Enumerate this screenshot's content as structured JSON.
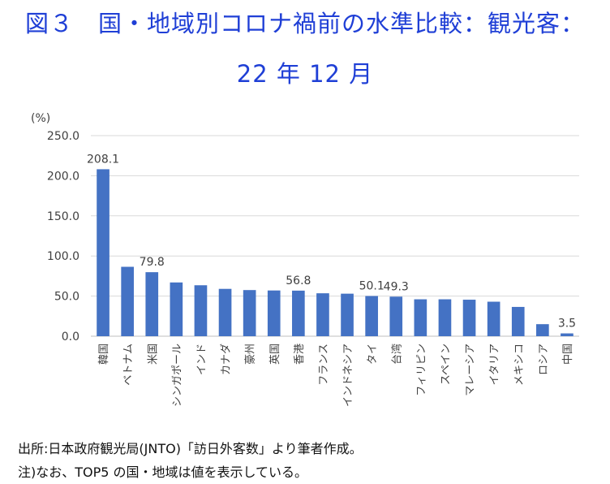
{
  "title": {
    "line1": "図３　国・地域別コロナ禍前の水準比較：観光客：",
    "line2": "22 年 12 月"
  },
  "notes": {
    "source": "出所:日本政府観光局(JNTO)「訪日外客数」より筆者作成。",
    "note": "注)なお、TOP5 の国・地域は値を表示している。"
  },
  "chart_data": {
    "type": "bar",
    "unit_label": "(%)",
    "categories": [
      "韓国",
      "ベトナム",
      "米国",
      "シンガポール",
      "インド",
      "カナダ",
      "豪州",
      "英国",
      "香港",
      "フランス",
      "インドネシア",
      "タイ",
      "台湾",
      "フィリピン",
      "スペイン",
      "マレーシア",
      "イタリア",
      "メキシコ",
      "ロシア",
      "中国"
    ],
    "values": [
      208.1,
      86.5,
      79.8,
      67.0,
      63.5,
      59.0,
      57.5,
      57.0,
      56.8,
      53.5,
      53.0,
      50.1,
      49.3,
      46.0,
      46.0,
      45.5,
      43.0,
      36.5,
      15.0,
      3.5
    ],
    "data_labels": {
      "0": "208.1",
      "2": "79.8",
      "8": "56.8",
      "11": "50.1",
      "12": "49.3",
      "19": "3.5"
    },
    "ylim": [
      0,
      250
    ],
    "yticks": [
      0,
      50,
      100,
      150,
      200,
      250
    ],
    "ytick_labels": [
      "0.0",
      "50.0",
      "100.0",
      "150.0",
      "200.0",
      "250.0"
    ],
    "grid": true,
    "bar_color": "#4472c4"
  }
}
